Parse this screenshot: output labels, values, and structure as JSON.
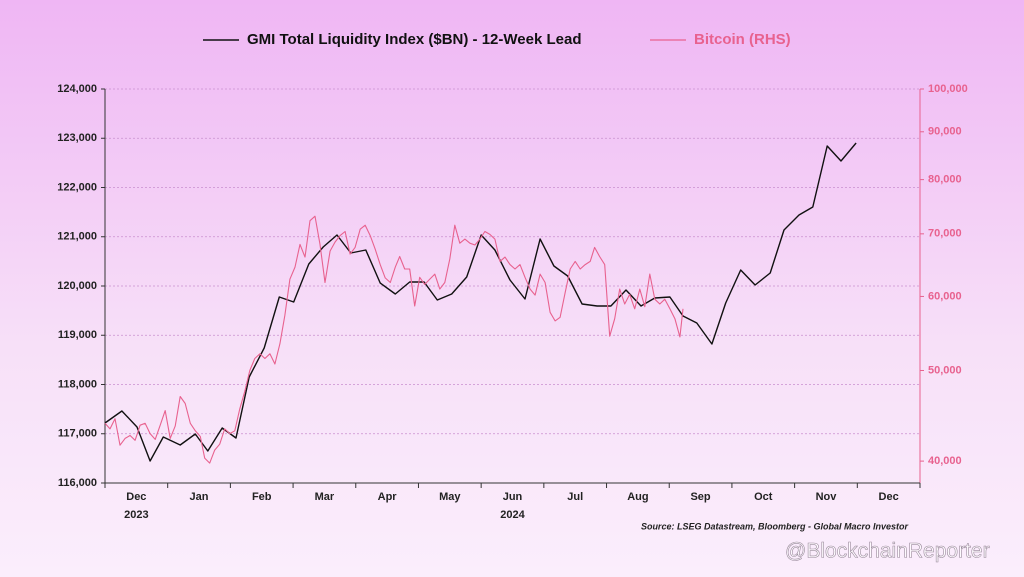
{
  "chart_data": {
    "type": "line",
    "source": "Source: LSEG Datastream, Bloomberg - Global Macro Investor",
    "watermark": "@BlockchainReporter",
    "legend": "top",
    "xlim": [
      0,
      13
    ],
    "xticks": [
      {
        "value": 0.5,
        "label": "Dec"
      },
      {
        "value": 1.5,
        "label": "Jan"
      },
      {
        "value": 2.5,
        "label": "Feb"
      },
      {
        "value": 3.5,
        "label": "Mar"
      },
      {
        "value": 4.5,
        "label": "Apr"
      },
      {
        "value": 5.5,
        "label": "May"
      },
      {
        "value": 6.5,
        "label": "Jun"
      },
      {
        "value": 7.5,
        "label": "Jul"
      },
      {
        "value": 8.5,
        "label": "Aug"
      },
      {
        "value": 9.5,
        "label": "Sep"
      },
      {
        "value": 10.5,
        "label": "Oct"
      },
      {
        "value": 11.5,
        "label": "Nov"
      },
      {
        "value": 12.5,
        "label": "Dec"
      }
    ],
    "xyears": [
      {
        "value": 0.5,
        "label": "2023"
      },
      {
        "value": 6.5,
        "label": "2024"
      }
    ],
    "ylim": [
      116000,
      124000
    ],
    "yticks": [
      {
        "value": 116000,
        "label": "116,000"
      },
      {
        "value": 117000,
        "label": "117,000"
      },
      {
        "value": 118000,
        "label": "118,000"
      },
      {
        "value": 119000,
        "label": "119,000"
      },
      {
        "value": 120000,
        "label": "120,000"
      },
      {
        "value": 121000,
        "label": "121,000"
      },
      {
        "value": 122000,
        "label": "122,000"
      },
      {
        "value": 123000,
        "label": "123,000"
      },
      {
        "value": 124000,
        "label": "124,000"
      }
    ],
    "y2lim": [
      37900,
      100000
    ],
    "y2log": true,
    "y2ticks": [
      {
        "value": 40000,
        "label": "40,000"
      },
      {
        "value": 50000,
        "label": "50,000"
      },
      {
        "value": 60000,
        "label": "60,000"
      },
      {
        "value": 70000,
        "label": "70,000"
      },
      {
        "value": 80000,
        "label": "80,000"
      },
      {
        "value": 90000,
        "label": "90,000"
      },
      {
        "value": 100000,
        "label": "100,000"
      }
    ],
    "grid": true,
    "series": [
      {
        "name": "GMI Total Liquidity Index ($BN) - 12-Week Lead",
        "color": "#111111",
        "x": [
          0,
          0.27,
          0.51,
          0.72,
          0.93,
          1.2,
          1.44,
          1.64,
          1.87,
          2.09,
          2.3,
          2.54,
          2.78,
          3.01,
          3.25,
          3.48,
          3.7,
          3.92,
          4.16,
          4.39,
          4.63,
          4.86,
          5.09,
          5.3,
          5.53,
          5.77,
          6,
          6.22,
          6.46,
          6.7,
          6.94,
          7.16,
          7.38,
          7.61,
          7.85,
          8.07,
          8.31,
          8.55,
          8.77,
          9.01,
          9.22,
          9.44,
          9.68,
          9.9,
          10.14,
          10.37,
          10.61,
          10.83,
          11.07,
          11.29,
          11.52,
          11.74,
          11.98
        ],
        "values": [
          117218,
          117462,
          117137,
          116447,
          116934,
          116772,
          116995,
          116650,
          117117,
          116914,
          118152,
          118741,
          119777,
          119675,
          120447,
          120792,
          121036,
          120670,
          120731,
          120061,
          119838,
          120081,
          120081,
          119716,
          119838,
          120183,
          121036,
          120731,
          120122,
          119736,
          120954,
          120406,
          120203,
          119634,
          119594,
          119594,
          119919,
          119594,
          119756,
          119777,
          119391,
          119249,
          118822,
          119655,
          120325,
          120020,
          120264,
          121137,
          121442,
          121604,
          122843,
          122538,
          122904
        ]
      },
      {
        "name": "Bitcoin (RHS)",
        "color": "#e8628f",
        "axis": "y2",
        "x": [
          0,
          0.08,
          0.16,
          0.24,
          0.32,
          0.4,
          0.48,
          0.56,
          0.64,
          0.72,
          0.8,
          0.88,
          0.96,
          1.04,
          1.12,
          1.2,
          1.28,
          1.36,
          1.44,
          1.52,
          1.59,
          1.67,
          1.75,
          1.83,
          1.91,
          1.99,
          2.07,
          2.15,
          2.23,
          2.31,
          2.39,
          2.47,
          2.55,
          2.63,
          2.71,
          2.79,
          2.87,
          2.95,
          3.03,
          3.11,
          3.19,
          3.27,
          3.35,
          3.43,
          3.51,
          3.59,
          3.67,
          3.75,
          3.83,
          3.91,
          3.99,
          4.07,
          4.15,
          4.23,
          4.31,
          4.39,
          4.47,
          4.55,
          4.63,
          4.7,
          4.78,
          4.86,
          4.94,
          5.02,
          5.1,
          5.18,
          5.26,
          5.34,
          5.42,
          5.5,
          5.58,
          5.66,
          5.74,
          5.82,
          5.9,
          5.98,
          6.06,
          6.14,
          6.22,
          6.3,
          6.38,
          6.46,
          6.54,
          6.62,
          6.7,
          6.78,
          6.86,
          6.94,
          7.02,
          7.1,
          7.18,
          7.26,
          7.34,
          7.42,
          7.5,
          7.58,
          7.66,
          7.74,
          7.81,
          7.89,
          7.97,
          8.05,
          8.13,
          8.21,
          8.29,
          8.37,
          8.45,
          8.53,
          8.61,
          8.69,
          8.77,
          8.85,
          8.93,
          9.01,
          9.09,
          9.17,
          9.22
        ],
        "values": [
          43900,
          43300,
          44400,
          41600,
          42300,
          42600,
          42100,
          43700,
          43900,
          42800,
          42200,
          43700,
          45300,
          42300,
          43600,
          46900,
          46100,
          43900,
          43100,
          42500,
          40300,
          39800,
          41100,
          41700,
          43300,
          42800,
          43100,
          45500,
          47500,
          50000,
          51500,
          52100,
          51500,
          52100,
          50800,
          53400,
          57300,
          62600,
          64500,
          68200,
          66100,
          72300,
          73100,
          68200,
          62100,
          67100,
          68600,
          69700,
          70400,
          66600,
          67700,
          70800,
          71500,
          69700,
          67400,
          64900,
          62800,
          62100,
          64500,
          66200,
          64200,
          64200,
          58600,
          62900,
          61800,
          62600,
          63400,
          61100,
          62100,
          65800,
          71500,
          68400,
          69100,
          68400,
          68100,
          69100,
          70400,
          69900,
          69100,
          65400,
          66100,
          64900,
          64200,
          64900,
          62900,
          61100,
          60200,
          63400,
          62100,
          57700,
          56500,
          57000,
          60600,
          64200,
          65400,
          64200,
          64900,
          65400,
          67700,
          66200,
          64900,
          54400,
          56800,
          61100,
          58900,
          60300,
          58200,
          61100,
          58500,
          63400,
          59600,
          58900,
          59600,
          58200,
          56800,
          54300,
          58200
        ]
      }
    ]
  }
}
